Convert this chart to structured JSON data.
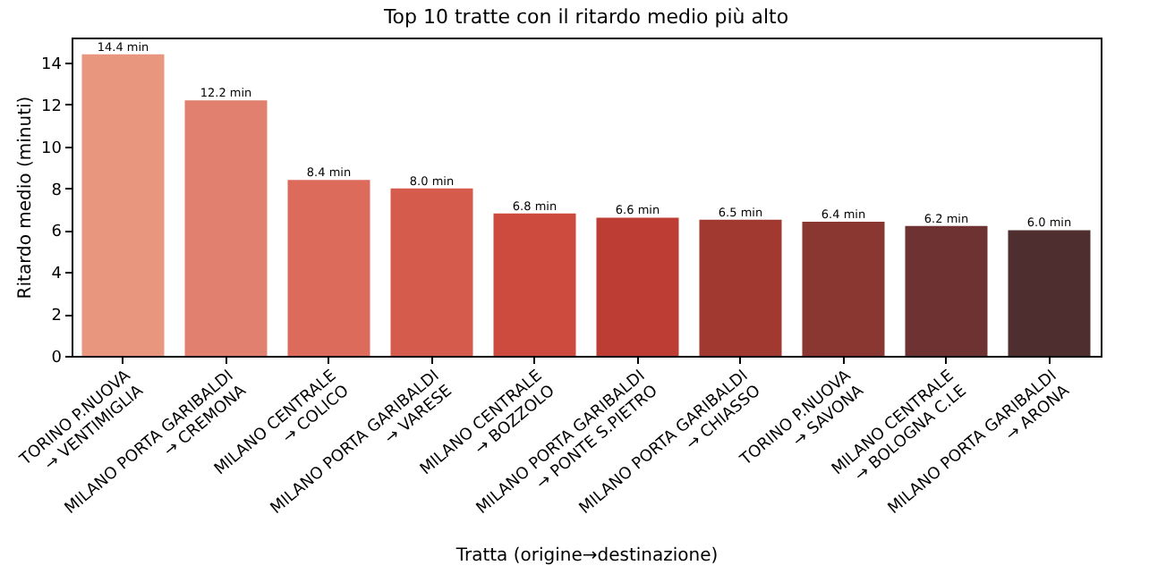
{
  "chart_data": {
    "type": "bar",
    "title": "Top 10 tratte con il ritardo medio più alto",
    "xlabel": "Tratta (origine→destinazione)",
    "ylabel": "Ritardo medio (minuti)",
    "categories": [
      "TORINO P.NUOVA\n→ VENTIMIGLIA",
      "MILANO PORTA GARIBALDI\n→ CREMONA",
      "MILANO CENTRALE\n→ COLICO",
      "MILANO PORTA GARIBALDI\n→ VARESE",
      "MILANO CENTRALE\n→ BOZZOLO",
      "MILANO PORTA GARIBALDI\n→ PONTE S.PIETRO",
      "MILANO PORTA GARIBALDI\n→ CHIASSO",
      "TORINO P.NUOVA\n→ SAVONA",
      "MILANO CENTRALE\n→ BOLOGNA C.LE",
      "MILANO PORTA GARIBALDI\n→ ARONA"
    ],
    "values": [
      14.4,
      12.2,
      8.4,
      8.0,
      6.8,
      6.6,
      6.5,
      6.4,
      6.2,
      6.0
    ],
    "value_labels": [
      "14.4 min",
      "12.2 min",
      "8.4 min",
      "8.0 min",
      "6.8 min",
      "6.6 min",
      "6.5 min",
      "6.4 min",
      "6.2 min",
      "6.0 min"
    ],
    "colors": [
      "#e9967f",
      "#e1806e",
      "#dd6b5c",
      "#d55b4d",
      "#cc4a3e",
      "#bd3d35",
      "#a23930",
      "#8a3631",
      "#6e3232",
      "#4e2e2e"
    ],
    "ylim": [
      0,
      15.2
    ],
    "yticks": [
      0,
      2,
      4,
      6,
      8,
      10,
      12,
      14
    ],
    "grid": false
  }
}
